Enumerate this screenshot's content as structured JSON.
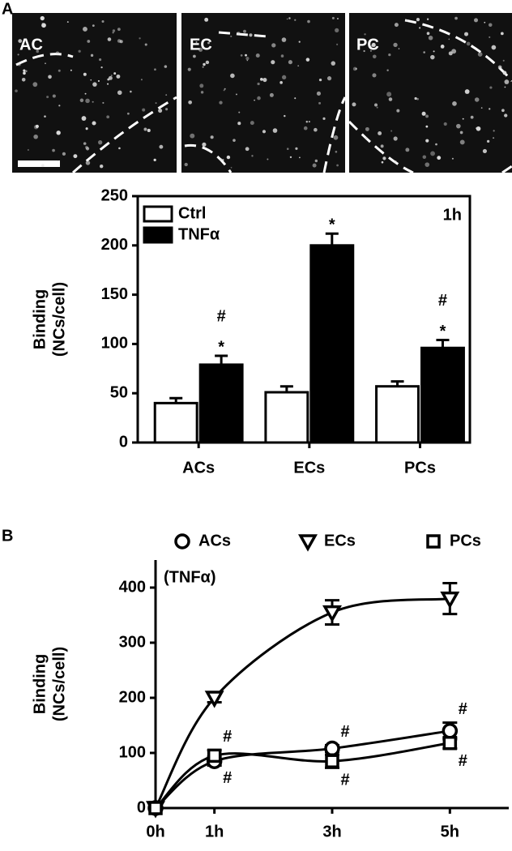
{
  "panel_labels": [
    "A",
    "B"
  ],
  "images": [
    "AC",
    "EC",
    "PC"
  ],
  "chart_data": [
    {
      "type": "bar",
      "ylabel": [
        "Binding",
        "(NCs/cell)"
      ],
      "note": "1h",
      "legend": "upper left",
      "categories": [
        "ACs",
        "ECs",
        "PCs"
      ],
      "series": [
        {
          "name": "Ctrl",
          "color": "#ffffff",
          "values": [
            40,
            51,
            57
          ],
          "errors": [
            5,
            6,
            5
          ]
        },
        {
          "name": "TNFα",
          "color": "#000000",
          "values": [
            79,
            200,
            96
          ],
          "errors": [
            9,
            12,
            8
          ]
        }
      ],
      "annotations": [
        {
          "text": "*",
          "category": 0,
          "series": 1
        },
        {
          "text": "#",
          "category": 0,
          "series": 1
        },
        {
          "text": "*",
          "category": 1,
          "series": 1
        },
        {
          "text": "*",
          "category": 2,
          "series": 1
        },
        {
          "text": "#",
          "category": 2,
          "series": 1
        }
      ],
      "ylim": [
        0,
        250
      ],
      "yticks": [
        0,
        50,
        100,
        150,
        200,
        250
      ]
    },
    {
      "type": "line",
      "ylabel": [
        "Binding",
        "(NCs/cell)"
      ],
      "note": "(TNFα)",
      "legend": "top",
      "x": [
        0,
        1,
        3,
        5
      ],
      "series": [
        {
          "name": "ACs",
          "marker": "circle",
          "color": "#000000",
          "values": [
            0,
            85,
            108,
            140
          ],
          "errors": [
            0,
            8,
            6,
            15
          ]
        },
        {
          "name": "ECs",
          "marker": "triangle",
          "color": "#000000",
          "values": [
            0,
            200,
            355,
            380
          ],
          "errors": [
            0,
            8,
            22,
            28
          ]
        },
        {
          "name": "PCs",
          "marker": "square",
          "color": "#000000",
          "values": [
            0,
            95,
            85,
            118
          ],
          "errors": [
            0,
            10,
            12,
            10
          ]
        }
      ],
      "annotations": [
        {
          "text": "#",
          "series": 2,
          "index": 1,
          "side": "above"
        },
        {
          "text": "#",
          "series": 0,
          "index": 1,
          "side": "below"
        },
        {
          "text": "#",
          "series": 0,
          "index": 2,
          "side": "above"
        },
        {
          "text": "#",
          "series": 2,
          "index": 2,
          "side": "below"
        },
        {
          "text": "#",
          "series": 0,
          "index": 3,
          "side": "above"
        },
        {
          "text": "#",
          "series": 2,
          "index": 3,
          "side": "below"
        }
      ],
      "xlim": [
        0,
        6
      ],
      "xticks": [
        {
          "value": 0,
          "label": "0h"
        },
        {
          "value": 1,
          "label": "1h"
        },
        {
          "value": 3,
          "label": "3h"
        },
        {
          "value": 5,
          "label": "5h"
        }
      ],
      "ylim": [
        0,
        450
      ],
      "yticks": [
        0,
        100,
        200,
        300,
        400
      ]
    }
  ]
}
